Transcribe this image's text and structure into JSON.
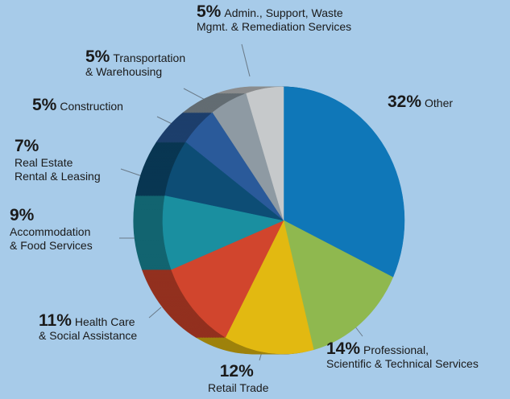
{
  "chart_data": {
    "type": "pie",
    "categories": [
      "Other",
      "Professional,\nScientific & Technical Services",
      "Retail Trade",
      "Health Care\n& Social Assistance",
      "Accommodation\n& Food Services",
      "Real Estate\nRental & Leasing",
      "Construction",
      "Transportation\n& Warehousing",
      "Admin., Support, Waste\nMgmt. & Remediation Services"
    ],
    "values": [
      32,
      14,
      12,
      11,
      9,
      7,
      5,
      5,
      5
    ],
    "value_labels": [
      "32%",
      "14%",
      "12%",
      "11%",
      "9%",
      "7%",
      "5%",
      "5%",
      "5%"
    ],
    "colors": [
      "#0f77b8",
      "#8fb84f",
      "#e2b911",
      "#d1452d",
      "#1a8fa0",
      "#0d4d75",
      "#2a5a9a",
      "#8e9aa3",
      "#c6c9cb"
    ]
  }
}
